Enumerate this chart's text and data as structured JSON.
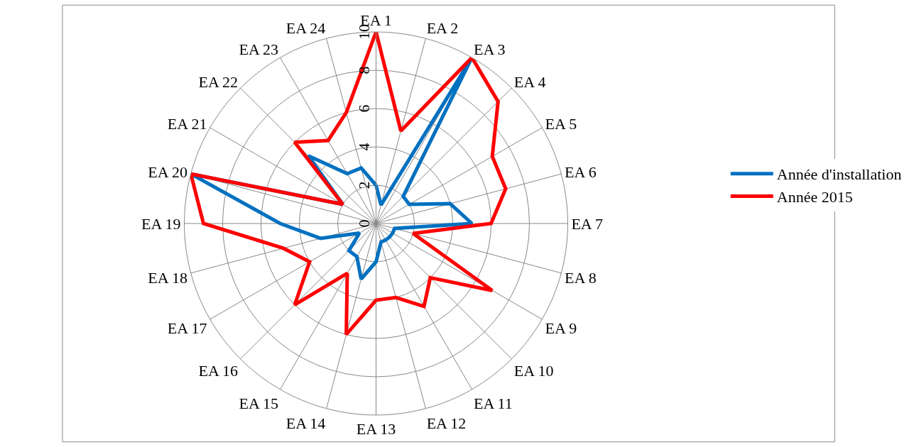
{
  "chart_data": {
    "type": "radar",
    "categories": [
      "EA 1",
      "EA 2",
      "EA 3",
      "EA 4",
      "EA 5",
      "EA 6",
      "EA 7",
      "EA 8",
      "EA 9",
      "EA 10",
      "EA 11",
      "EA 12",
      "EA 13",
      "EA 14",
      "EA 15",
      "EA 16",
      "EA 17",
      "EA 18",
      "EA 19",
      "EA 20",
      "EA 21",
      "EA 22",
      "EA 23",
      "EA 24"
    ],
    "series": [
      {
        "name": "Année d'installation",
        "color": "#0070c0",
        "values": [
          2,
          1,
          10,
          2,
          2,
          4,
          5,
          1,
          1,
          1,
          1,
          1,
          2,
          3,
          2,
          2,
          1,
          3,
          5,
          10,
          2,
          5,
          3,
          3
        ]
      },
      {
        "name": "Année 2015",
        "color": "#ff0000",
        "values": [
          10,
          5,
          10,
          9,
          7,
          7,
          6,
          2,
          7,
          4,
          5,
          4,
          4,
          6,
          3,
          6,
          4,
          5,
          9,
          10,
          2,
          6,
          5,
          6
        ]
      }
    ],
    "ylim": [
      0,
      10
    ],
    "yticks": [
      0,
      2,
      4,
      6,
      8,
      10
    ],
    "grid": true,
    "legend": "right",
    "marker": "none",
    "line_style": "solid"
  }
}
